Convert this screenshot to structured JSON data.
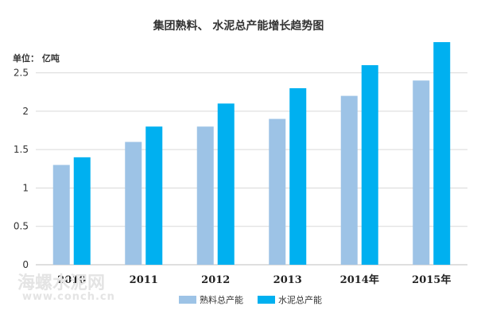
{
  "chart_data": {
    "type": "bar",
    "title": "集团熟料、 水泥总产能增长趋势图",
    "unit_label": "单位： 亿吨",
    "categories": [
      "2010",
      "2011",
      "2012",
      "2013",
      "2014年",
      "2015年"
    ],
    "series": [
      {
        "name": "熟料总产能",
        "color": "#9dc3e6",
        "values": [
          1.3,
          1.6,
          1.8,
          1.9,
          2.2,
          2.4
        ]
      },
      {
        "name": "水泥总产能",
        "color": "#00b0f0",
        "values": [
          1.4,
          1.8,
          2.1,
          2.3,
          2.6,
          2.9
        ]
      }
    ],
    "y_ticks": [
      "0",
      "0.5",
      "1",
      "1.5",
      "2",
      "2.5"
    ],
    "ylim": [
      0,
      2.9
    ],
    "grid": true,
    "legend_position": "bottom"
  },
  "watermark": {
    "site_name": "海螺水泥网",
    "url": "www.conch.cn"
  }
}
